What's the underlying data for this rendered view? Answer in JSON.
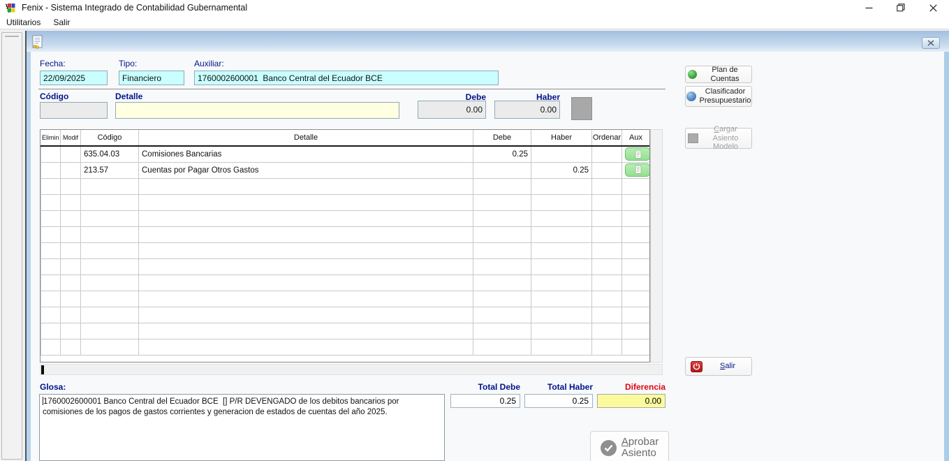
{
  "window": {
    "title": "Fenix - Sistema Integrado de Contabilidad Gubernamental"
  },
  "menu": {
    "items": [
      "Utilitarios",
      "Salir"
    ]
  },
  "form": {
    "fields": {
      "fecha": {
        "label": "Fecha:",
        "value": "22/09/2025"
      },
      "tipo": {
        "label": "Tipo:",
        "value": "Financiero"
      },
      "auxiliar": {
        "label": "Auxiliar:",
        "value": "1760002600001  Banco Central del Ecuador BCE"
      }
    },
    "entry": {
      "codigo_label": "Código",
      "detalle_label": "Detalle",
      "debe_label": "Debe",
      "haber_label": "Haber",
      "codigo_value": "",
      "detalle_value": "",
      "debe_value": "0.00",
      "haber_value": "0.00"
    },
    "table": {
      "headers": [
        "Elimin",
        "Modif",
        "Código",
        "Detalle",
        "Debe",
        "Haber",
        "Ordenar",
        "Aux"
      ],
      "rows": [
        {
          "codigo": "635.04.03",
          "detalle": "Comisiones Bancarias",
          "debe": "0.25",
          "haber": ""
        },
        {
          "codigo": "213.57",
          "detalle": "Cuentas por Pagar Otros Gastos",
          "debe": "",
          "haber": "0.25"
        }
      ],
      "empty_rows": 11
    },
    "glosa": {
      "label": "Glosa:",
      "value": "1760002600001 Banco Central del Ecuador BCE  [] P/R DEVENGADO de los debitos bancarios por comisiones de los pagos de gastos corrientes y generacion de estados de cuentas del año 2025."
    },
    "totals": {
      "debe_label": "Total Debe",
      "debe_value": "0.25",
      "haber_label": "Total Haber",
      "haber_value": "0.25",
      "diferencia_label": "Diferencia",
      "diferencia_value": "0.00"
    }
  },
  "buttons": {
    "plan_de_cuentas": "Plan de Cuentas",
    "clasificador_line1": "Clasificador",
    "clasificador_line2": "Presupuestario",
    "cargar_line1": "Cargar Asiento",
    "cargar_line2": "Modelo",
    "salir": "Salir",
    "aprobar_line1": "Aprobar",
    "aprobar_line2": "Asiento"
  },
  "colors": {
    "label_navy": "#001489",
    "diferencia_red": "#e30413",
    "diferencia_bg": "#fbfb9e",
    "field_cyan": "#c9ffff",
    "field_yellow": "#ffffe1",
    "aux_green": "#93e090",
    "titlebar_gradient_top": "#a3bedd"
  }
}
